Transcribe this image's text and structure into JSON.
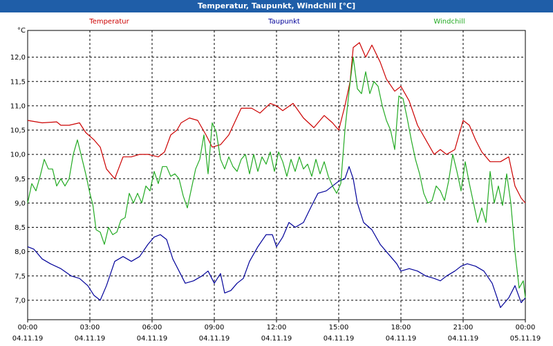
{
  "window": {
    "title": "Temperatur, Taupunkt, Windchill [°C]"
  },
  "chart_data": {
    "type": "line",
    "title": "Temperatur, Taupunkt, Windchill [°C]",
    "ylabel": "°C",
    "xlabel": "",
    "ylim": [
      6.6,
      12.55
    ],
    "xlim": [
      0,
      24
    ],
    "grid": true,
    "legend_position": "top",
    "y_ticks": [
      "7,0",
      "7,5",
      "8,0",
      "8,5",
      "9,0",
      "9,5",
      "10,0",
      "10,5",
      "11,0",
      "11,5",
      "12,0"
    ],
    "x_ticks": [
      {
        "time": "00:00",
        "date": "04.11.19"
      },
      {
        "time": "03:00",
        "date": "04.11.19"
      },
      {
        "time": "06:00",
        "date": "04.11.19"
      },
      {
        "time": "09:00",
        "date": "04.11.19"
      },
      {
        "time": "12:00",
        "date": "04.11.19"
      },
      {
        "time": "15:00",
        "date": "04.11.19"
      },
      {
        "time": "18:00",
        "date": "04.11.19"
      },
      {
        "time": "21:00",
        "date": "04.11.19"
      },
      {
        "time": "00:00",
        "date": "05.11.19"
      }
    ],
    "series": [
      {
        "name": "Temperatur",
        "color": "#cc0000",
        "x": [
          0,
          0.7,
          1.4,
          1.6,
          2.0,
          2.5,
          2.8,
          3.2,
          3.5,
          3.8,
          4.2,
          4.6,
          5.0,
          5.4,
          5.8,
          6.3,
          6.6,
          6.9,
          7.2,
          7.4,
          7.8,
          8.2,
          8.6,
          8.9,
          9.3,
          9.7,
          10.3,
          10.8,
          11.2,
          11.7,
          12.0,
          12.3,
          12.8,
          13.3,
          13.8,
          14.3,
          14.7,
          15.0,
          15.3,
          15.55,
          15.7,
          16.0,
          16.3,
          16.6,
          17.0,
          17.3,
          17.7,
          18.0,
          18.4,
          18.8,
          19.2,
          19.6,
          19.9,
          20.2,
          20.6,
          21.0,
          21.3,
          21.6,
          21.9,
          22.3,
          22.8,
          23.2,
          23.5,
          23.8,
          24.0
        ],
        "values": [
          10.7,
          10.65,
          10.67,
          10.6,
          10.6,
          10.65,
          10.45,
          10.3,
          10.15,
          9.7,
          9.5,
          9.95,
          9.95,
          10.0,
          10.0,
          9.95,
          10.05,
          10.4,
          10.5,
          10.65,
          10.75,
          10.7,
          10.4,
          10.15,
          10.2,
          10.4,
          10.95,
          10.95,
          10.85,
          11.05,
          11.0,
          10.9,
          11.05,
          10.75,
          10.55,
          10.8,
          10.65,
          10.5,
          11.0,
          11.5,
          12.2,
          12.3,
          12.0,
          12.25,
          11.9,
          11.55,
          11.3,
          11.4,
          11.1,
          10.6,
          10.3,
          10.0,
          10.1,
          10.0,
          10.1,
          10.7,
          10.6,
          10.3,
          10.05,
          9.85,
          9.85,
          9.95,
          9.35,
          9.1,
          9.0
        ]
      },
      {
        "name": "Taupunkt",
        "color": "#000099",
        "x": [
          0,
          0.3,
          0.7,
          1.1,
          1.6,
          2.1,
          2.5,
          2.9,
          3.2,
          3.5,
          3.8,
          4.2,
          4.6,
          5.0,
          5.4,
          5.8,
          6.1,
          6.4,
          6.7,
          7.0,
          7.3,
          7.6,
          8.0,
          8.4,
          8.7,
          9.0,
          9.3,
          9.5,
          9.8,
          10.1,
          10.4,
          10.7,
          11.1,
          11.5,
          11.8,
          12.0,
          12.3,
          12.6,
          12.9,
          13.3,
          13.7,
          14.0,
          14.4,
          14.7,
          15.0,
          15.3,
          15.5,
          15.7,
          15.9,
          16.2,
          16.6,
          17.0,
          17.4,
          17.8,
          18.0,
          18.4,
          18.8,
          19.2,
          19.6,
          19.9,
          20.2,
          20.6,
          20.9,
          21.2,
          21.6,
          22.0,
          22.4,
          22.8,
          23.2,
          23.5,
          23.8,
          24.0
        ],
        "values": [
          8.1,
          8.05,
          7.85,
          7.75,
          7.65,
          7.5,
          7.45,
          7.3,
          7.1,
          7.0,
          7.3,
          7.8,
          7.9,
          7.8,
          7.9,
          8.15,
          8.3,
          8.35,
          8.25,
          7.85,
          7.6,
          7.35,
          7.4,
          7.5,
          7.6,
          7.35,
          7.55,
          7.15,
          7.2,
          7.35,
          7.45,
          7.8,
          8.1,
          8.35,
          8.35,
          8.1,
          8.3,
          8.6,
          8.5,
          8.6,
          8.95,
          9.2,
          9.25,
          9.35,
          9.45,
          9.5,
          9.75,
          9.5,
          9.0,
          8.6,
          8.45,
          8.15,
          7.95,
          7.75,
          7.6,
          7.65,
          7.6,
          7.5,
          7.45,
          7.4,
          7.5,
          7.6,
          7.7,
          7.75,
          7.7,
          7.6,
          7.35,
          6.85,
          7.05,
          7.3,
          6.95,
          7.05
        ]
      },
      {
        "name": "Windchill",
        "color": "#22aa22",
        "x": [
          0,
          0.2,
          0.4,
          0.6,
          0.8,
          1.0,
          1.2,
          1.4,
          1.6,
          1.8,
          2.0,
          2.2,
          2.4,
          2.6,
          2.8,
          3.0,
          3.15,
          3.3,
          3.5,
          3.7,
          3.9,
          4.1,
          4.3,
          4.5,
          4.7,
          4.9,
          5.1,
          5.3,
          5.5,
          5.7,
          5.9,
          6.1,
          6.3,
          6.5,
          6.7,
          6.9,
          7.1,
          7.3,
          7.5,
          7.7,
          7.9,
          8.1,
          8.3,
          8.5,
          8.7,
          8.9,
          9.1,
          9.3,
          9.5,
          9.7,
          9.9,
          10.1,
          10.3,
          10.5,
          10.7,
          10.9,
          11.1,
          11.3,
          11.5,
          11.7,
          11.9,
          12.1,
          12.3,
          12.5,
          12.7,
          12.9,
          13.1,
          13.3,
          13.5,
          13.7,
          13.9,
          14.1,
          14.3,
          14.5,
          14.7,
          14.9,
          15.1,
          15.3,
          15.5,
          15.7,
          15.9,
          16.1,
          16.3,
          16.5,
          16.7,
          16.9,
          17.1,
          17.3,
          17.5,
          17.7,
          17.9,
          18.1,
          18.3,
          18.5,
          18.7,
          18.9,
          19.1,
          19.3,
          19.5,
          19.7,
          19.9,
          20.1,
          20.3,
          20.5,
          20.7,
          20.9,
          21.1,
          21.3,
          21.5,
          21.7,
          21.9,
          22.1,
          22.3,
          22.5,
          22.7,
          22.9,
          23.1,
          23.3,
          23.5,
          23.7,
          23.9,
          24.0
        ],
        "values": [
          9.0,
          9.4,
          9.25,
          9.55,
          9.9,
          9.7,
          9.7,
          9.35,
          9.5,
          9.35,
          9.5,
          10.0,
          10.3,
          9.95,
          9.6,
          9.2,
          8.95,
          8.45,
          8.4,
          8.15,
          8.5,
          8.35,
          8.4,
          8.65,
          8.7,
          9.2,
          9.0,
          9.2,
          9.0,
          9.35,
          9.25,
          9.65,
          9.4,
          9.75,
          9.75,
          9.55,
          9.6,
          9.5,
          9.15,
          8.9,
          9.3,
          9.7,
          9.9,
          10.4,
          9.6,
          10.65,
          10.45,
          9.9,
          9.7,
          9.95,
          9.75,
          9.65,
          9.9,
          10.0,
          9.6,
          10.0,
          9.65,
          9.95,
          9.8,
          10.05,
          9.65,
          10.05,
          9.85,
          9.55,
          9.9,
          9.65,
          9.95,
          9.7,
          9.8,
          9.55,
          9.9,
          9.6,
          9.85,
          9.55,
          9.35,
          9.2,
          9.4,
          10.5,
          11.3,
          12.0,
          11.35,
          11.25,
          11.7,
          11.25,
          11.5,
          11.4,
          11.0,
          10.7,
          10.5,
          10.1,
          11.2,
          11.15,
          10.75,
          10.3,
          9.9,
          9.6,
          9.2,
          9.0,
          9.05,
          9.35,
          9.25,
          9.05,
          9.45,
          10.0,
          9.65,
          9.25,
          9.85,
          9.4,
          9.0,
          8.6,
          8.9,
          8.6,
          9.65,
          9.0,
          9.35,
          8.95,
          9.6,
          9.0,
          8.0,
          7.25,
          7.4,
          7.05
        ]
      }
    ]
  }
}
